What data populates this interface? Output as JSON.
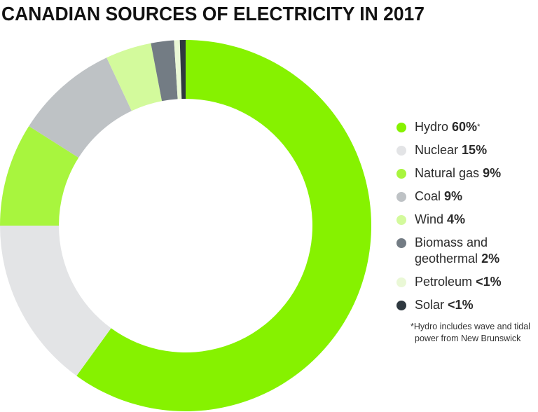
{
  "chart_data": {
    "type": "pie",
    "variant": "donut",
    "title": "CANADIAN SOURCES OF ELECTRICITY IN 2017",
    "legend_position": "right",
    "slices": [
      {
        "name": "Hydro",
        "label": "60%",
        "marker": "*",
        "value": 60,
        "color": "#86f200"
      },
      {
        "name": "Nuclear",
        "label": "15%",
        "value": 15,
        "color": "#e3e4e6"
      },
      {
        "name": "Natural gas",
        "label": "9%",
        "value": 9,
        "color": "#a8f53e"
      },
      {
        "name": "Coal",
        "label": "9%",
        "value": 9,
        "color": "#bec2c5"
      },
      {
        "name": "Wind",
        "label": "4%",
        "value": 4,
        "color": "#d3fa9c"
      },
      {
        "name": "Biomass and geothermal",
        "name_lines": [
          "Biomass and",
          "geothermal"
        ],
        "label": "2%",
        "value": 2,
        "color": "#737c84"
      },
      {
        "name": "Petroleum",
        "label": "<1%",
        "value": 0.5,
        "color": "#eaf8d6"
      },
      {
        "name": "Solar",
        "label": "<1%",
        "value": 0.5,
        "color": "#2f3940"
      }
    ],
    "footnote": [
      "*Hydro includes wave and tidal",
      "power from New Brunswick"
    ]
  }
}
